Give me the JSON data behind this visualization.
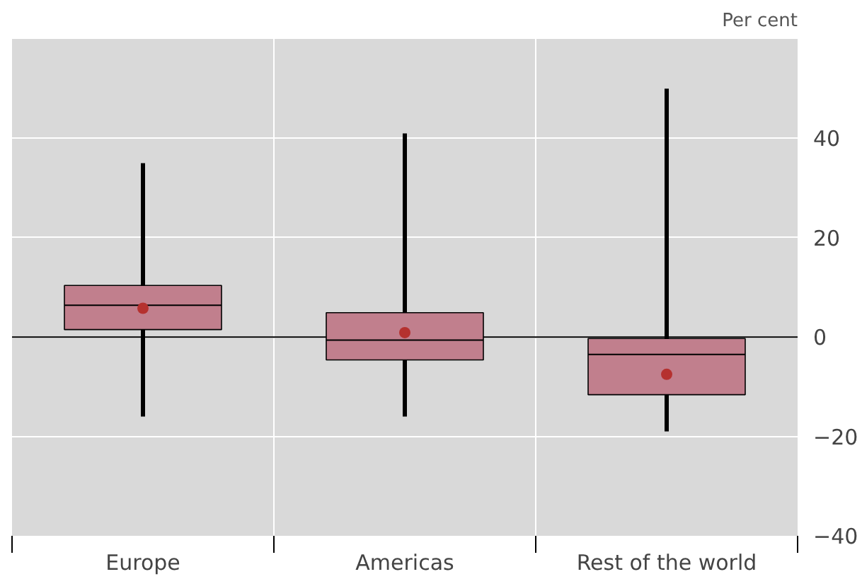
{
  "chart_data": {
    "type": "box",
    "ylabel": "Per cent",
    "categories": [
      "Europe",
      "Americas",
      "Rest of the world"
    ],
    "boxes": [
      {
        "low": -16,
        "q1": 1.5,
        "median": 6.4,
        "q3": 10.4,
        "high": 35,
        "mean": 5.8
      },
      {
        "low": -16,
        "q1": -4.6,
        "median": -0.6,
        "q3": 4.9,
        "high": 41,
        "mean": 0.9
      },
      {
        "low": -19,
        "q1": -11.6,
        "median": -3.5,
        "q3": -0.3,
        "high": 50,
        "mean": -7.5
      }
    ],
    "color": "#c17f8d",
    "ylim": [
      -40,
      60
    ],
    "yticks": [
      -40,
      -20,
      0,
      20,
      40
    ],
    "ref_lines": [
      {
        "axis": "y",
        "value": 0,
        "color": "#000000"
      }
    ],
    "grid": true
  }
}
